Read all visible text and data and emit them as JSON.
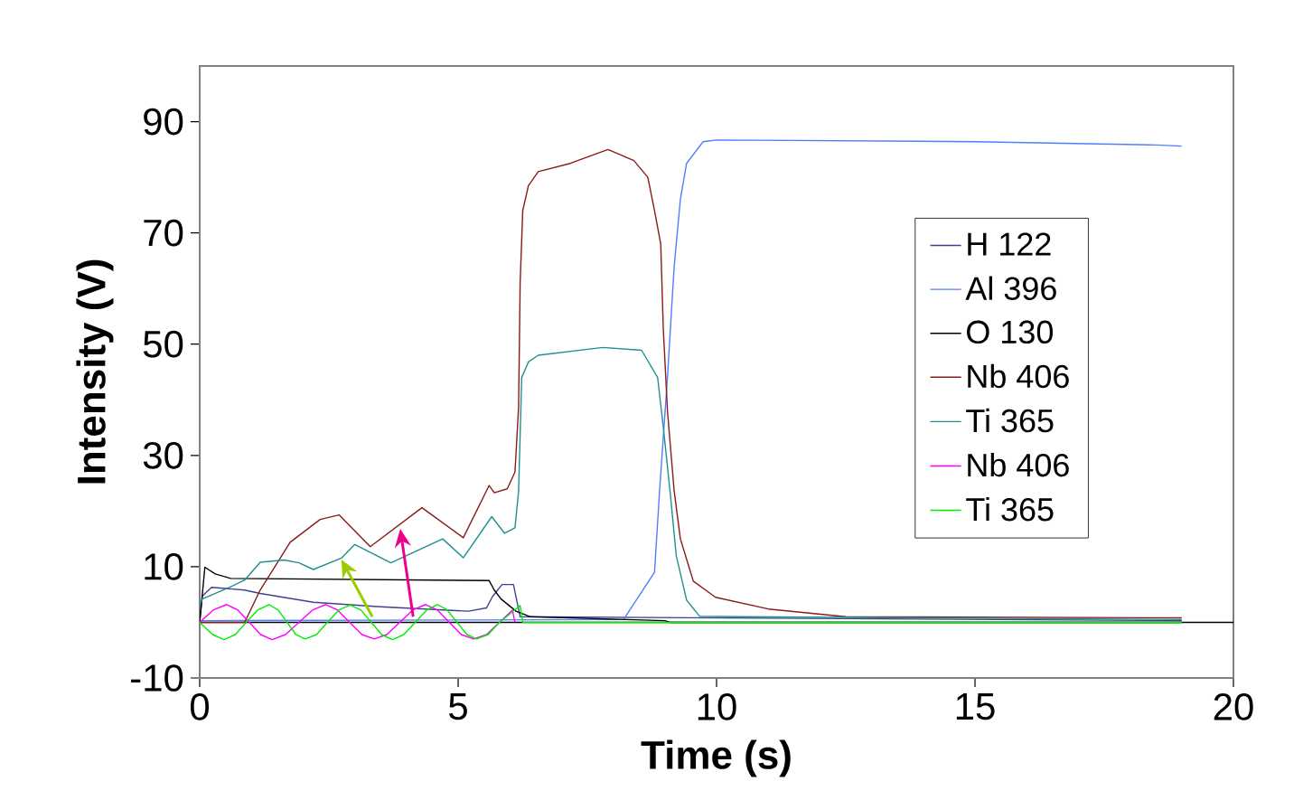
{
  "chart_data": {
    "type": "line",
    "xlabel": "Time (s)",
    "ylabel": "Intensity (V)",
    "xlim": [
      0,
      20
    ],
    "ylim": [
      -10,
      100
    ],
    "xticks": [
      0,
      5,
      10,
      15,
      20
    ],
    "yticks": [
      -10,
      10,
      30,
      50,
      70,
      90
    ],
    "grid": false,
    "legend": "right",
    "ref_lines": [
      {
        "axis": "y",
        "value": 0,
        "color": "#000000"
      }
    ],
    "series": [
      {
        "name": "H 122",
        "color": "#404090",
        "x": [
          0,
          0.05,
          0.23,
          0.87,
          1.17,
          2.2,
          3.5,
          5.2,
          5.55,
          5.67,
          5.85,
          6.07,
          6.2,
          19
        ],
        "values": [
          0,
          4.7,
          6.3,
          5.8,
          5.2,
          3.6,
          2.8,
          2,
          2.6,
          4.7,
          6.8,
          6.8,
          1,
          0.3
        ]
      },
      {
        "name": "Al 396",
        "color": "#4f7fff",
        "x": [
          0,
          8.2,
          8.8,
          8.9,
          9.05,
          9.18,
          9.3,
          9.42,
          9.74,
          10,
          15,
          18.5,
          19
        ],
        "values": [
          0.3,
          0.5,
          9,
          24,
          44,
          64,
          76,
          82.5,
          86.4,
          86.7,
          86.4,
          85.8,
          85.6
        ]
      },
      {
        "name": "O 130",
        "color": "#000000",
        "x": [
          0,
          0.1,
          0.3,
          0.6,
          5.6,
          5.7,
          5.83,
          6.12,
          6.4,
          9.0,
          9.1,
          19
        ],
        "values": [
          0,
          9.9,
          8.7,
          7.9,
          7.5,
          5.8,
          4.2,
          2,
          1,
          0.3,
          0,
          0
        ]
      },
      {
        "name": "Nb 406",
        "color": "#8b1a1a",
        "x": [
          0,
          0.87,
          1.17,
          1.75,
          2.33,
          2.7,
          3.3,
          4.3,
          5.1,
          5.6,
          5.7,
          5.95,
          6.1,
          6.17,
          6.2,
          6.25,
          6.36,
          6.55,
          7.17,
          7.9,
          8.4,
          8.67,
          8.8,
          8.92,
          8.97,
          9.05,
          9.18,
          9.3,
          9.55,
          9.98,
          11,
          12.5,
          19
        ],
        "values": [
          0,
          0,
          5.8,
          14.4,
          18.5,
          19.3,
          13.6,
          20.6,
          15.2,
          24.6,
          23.3,
          24,
          27,
          38.7,
          61,
          74,
          78.5,
          81,
          82.5,
          85,
          83,
          80,
          74,
          68,
          52.6,
          38,
          23.6,
          15,
          7.4,
          4.5,
          2.4,
          1,
          0.8
        ]
      },
      {
        "name": "Ti 365",
        "color": "#1f8f8f",
        "x": [
          0,
          0.05,
          0.58,
          0.87,
          1.17,
          1.63,
          1.92,
          2.2,
          2.75,
          3.0,
          3.7,
          4.7,
          5.1,
          5.65,
          5.9,
          6.1,
          6.17,
          6.23,
          6.36,
          6.55,
          7.8,
          8.55,
          8.86,
          8.97,
          9.1,
          9.22,
          9.42,
          9.67,
          10.5,
          19
        ],
        "values": [
          3,
          4.2,
          6.3,
          7.6,
          10.8,
          11.2,
          10.7,
          9.5,
          11.6,
          14,
          10.7,
          15,
          11.6,
          19,
          16,
          17,
          23.6,
          44,
          46.8,
          48,
          49.4,
          48.9,
          44,
          35,
          23.6,
          12,
          4,
          1.1,
          1,
          0.5
        ]
      },
      {
        "name": "Nb 406",
        "color": "#ff00ff",
        "x": [
          0,
          0.26,
          0.52,
          0.74,
          0.96,
          1.18,
          1.4,
          1.66,
          1.92,
          2.18,
          2.44,
          2.67,
          2.9,
          3.14,
          3.38,
          3.62,
          3.87,
          4.12,
          4.37,
          4.6,
          4.83,
          5.06,
          5.3,
          5.55,
          5.8,
          6.05,
          6.1
        ],
        "values": [
          0,
          2.2,
          3.2,
          2.2,
          0,
          -2.2,
          -3.1,
          -2.2,
          0,
          2.2,
          3.2,
          2.2,
          0,
          -2.2,
          -3.0,
          -2.2,
          0,
          2.2,
          3.2,
          2.2,
          0,
          -2.2,
          -3.0,
          -2.2,
          0,
          2.2,
          0
        ]
      },
      {
        "name": "Ti 365",
        "color": "#00ee00",
        "x": [
          0,
          0.25,
          0.47,
          0.69,
          0.9,
          1.12,
          1.34,
          1.52,
          1.69,
          1.86,
          2.04,
          2.26,
          2.47,
          2.69,
          2.91,
          3.12,
          3.32,
          3.52,
          3.73,
          3.95,
          4.17,
          4.39,
          4.6,
          4.79,
          4.98,
          5.17,
          5.36,
          5.58,
          5.8,
          6.2,
          6.25,
          19
        ],
        "values": [
          0,
          -2.2,
          -3.1,
          -2.2,
          0,
          2.2,
          3.2,
          2.2,
          0,
          -2.2,
          -3.0,
          -2.2,
          0,
          2.2,
          3.1,
          2.2,
          0,
          -2.2,
          -3.1,
          -2.2,
          0,
          2.2,
          3.2,
          2.2,
          0,
          -2.2,
          -3.0,
          -2.2,
          0,
          3.0,
          0,
          0
        ]
      }
    ]
  }
}
